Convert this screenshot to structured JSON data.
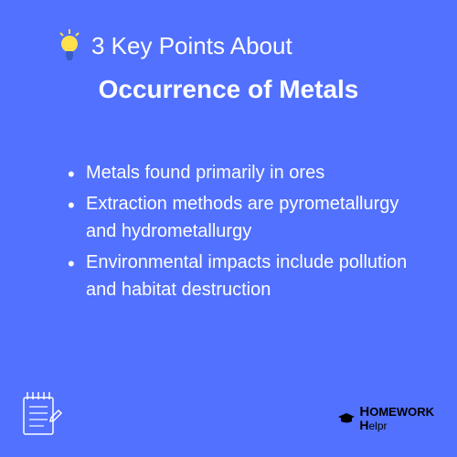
{
  "background_color": "#5271ff",
  "header": {
    "text": "3 Key Points About",
    "text_color": "#ffffff",
    "text_fontsize": 26,
    "icon_bulb_color": "#ffe14d",
    "icon_base_color": "#3a5cc7"
  },
  "title": {
    "text": "Occurrence of Metals",
    "text_color": "#ffffff",
    "text_fontsize": 28,
    "font_weight": 700
  },
  "points": [
    "Metals found primarily in ores",
    "Extraction methods are pyrometallurgy and hydrometallurgy",
    "Environmental impacts include pollution and habitat destruction"
  ],
  "points_style": {
    "text_color": "#ffffff",
    "fontsize": 20,
    "line_height": 1.5
  },
  "notepad_icon": {
    "stroke_color": "#ffffff"
  },
  "logo": {
    "text_main": "Homework",
    "text_sub": "Helpr",
    "text_color": "#000000",
    "icon_color": "#000000"
  }
}
